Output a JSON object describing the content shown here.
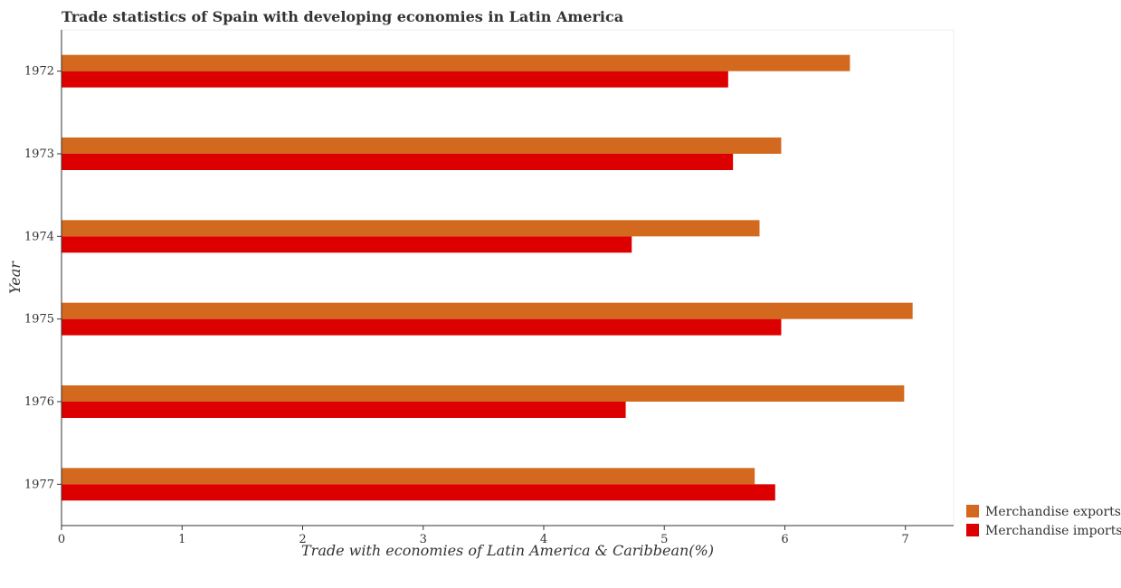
{
  "chart_data": {
    "type": "bar",
    "orientation": "horizontal",
    "title": "Trade statistics of Spain with developing economies in Latin America",
    "xlabel": "Trade with economies of Latin America & Caribbean(%)",
    "ylabel": "Year",
    "categories": [
      "1972",
      "1973",
      "1974",
      "1975",
      "1976",
      "1977"
    ],
    "xlim": [
      0,
      7.4
    ],
    "xticks": [
      "0",
      "1",
      "2",
      "3",
      "4",
      "5",
      "6",
      "7"
    ],
    "grid": false,
    "legend_position": "bottom-right",
    "series": [
      {
        "name": "Merchandise exports",
        "color": "#d2691e",
        "values": [
          6.54,
          5.97,
          5.79,
          7.06,
          6.99,
          5.75
        ]
      },
      {
        "name": "Merchandise imports",
        "color": "#dd0000",
        "values": [
          5.53,
          5.57,
          4.73,
          5.97,
          4.68,
          5.92
        ]
      }
    ]
  }
}
